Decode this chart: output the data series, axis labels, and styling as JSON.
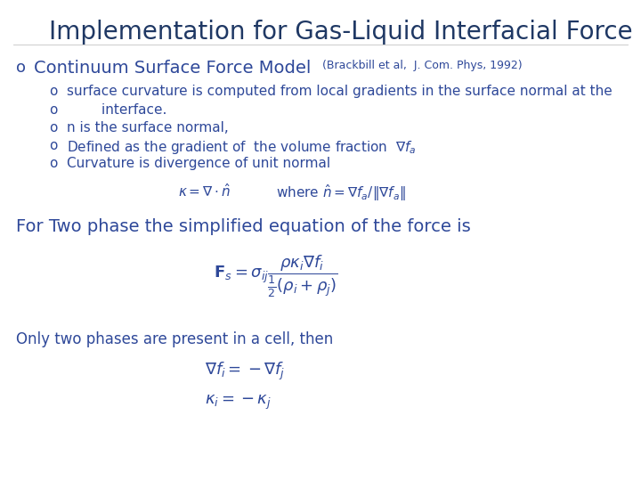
{
  "title": "Implementation for Gas-Liquid Interfacial Force",
  "title_color": "#1F3864",
  "title_fontsize": 20,
  "bg_color": "#ffffff",
  "blue_color": "#2E4899",
  "bullet1_text": "Continuum Surface Force Model",
  "bullet1_extra": "(Brackbill et al,  J. Com. Phys, 1992)",
  "bullet1_fontsize": 14,
  "bullet1_extra_fontsize": 9,
  "sub_bullets": [
    "surface curvature is computed from local gradients in the surface normal at the",
    "        interface.",
    "n is the surface normal,",
    "Defined as the gradient of  the volume fraction  $\\nabla f_a$",
    "Curvature is divergence of unit normal"
  ],
  "sub_bullet_fontsize": 11,
  "eq1_fontsize": 11,
  "text_two_phase": "For Two phase the simplified equation of the force is",
  "text_two_phase_fontsize": 14,
  "eq2_fontsize": 13,
  "text_only_two": "Only two phases are present in a cell, then",
  "text_only_two_fontsize": 12,
  "eq3_fontsize": 13
}
